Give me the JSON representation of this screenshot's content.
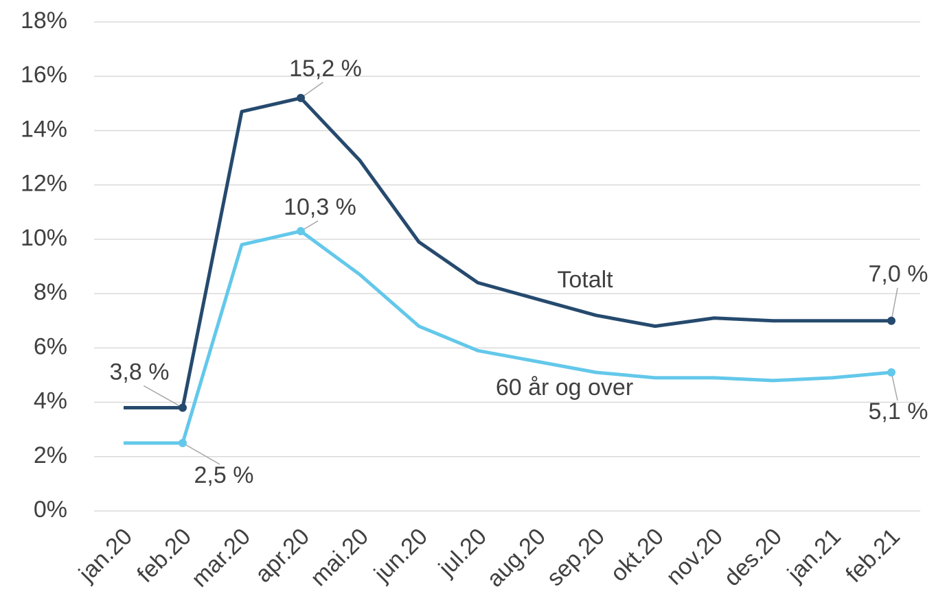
{
  "chart_data": {
    "type": "line",
    "categories": [
      "jan.20",
      "feb.20",
      "mar.20",
      "apr.20",
      "mai.20",
      "jun.20",
      "jul.20",
      "aug.20",
      "sep.20",
      "okt.20",
      "nov.20",
      "des.20",
      "jan.21",
      "feb.21"
    ],
    "series": [
      {
        "name": "Totalt",
        "color": "#264a6e",
        "values": [
          3.8,
          3.8,
          14.7,
          15.2,
          12.9,
          9.9,
          8.4,
          7.8,
          7.2,
          6.8,
          7.1,
          7.0,
          7.0,
          7.0
        ],
        "value_labels": [
          null,
          "3,8 %",
          null,
          "15,2 %",
          null,
          null,
          null,
          null,
          null,
          null,
          null,
          null,
          null,
          "7,0 %"
        ]
      },
      {
        "name": "60 år og over",
        "color": "#63c8ea",
        "values": [
          2.5,
          2.5,
          9.8,
          10.3,
          8.7,
          6.8,
          5.9,
          5.5,
          5.1,
          4.9,
          4.9,
          4.8,
          4.9,
          5.1
        ],
        "value_labels": [
          null,
          "2,5 %",
          null,
          "10,3 %",
          null,
          null,
          null,
          null,
          null,
          null,
          null,
          null,
          null,
          "5,1 %"
        ]
      }
    ],
    "ylim": [
      0,
      18
    ],
    "yticks": [
      {
        "value": 0,
        "label": "0%"
      },
      {
        "value": 2,
        "label": "2%"
      },
      {
        "value": 4,
        "label": "4%"
      },
      {
        "value": 6,
        "label": "6%"
      },
      {
        "value": 8,
        "label": "8%"
      },
      {
        "value": 10,
        "label": "10%"
      },
      {
        "value": 12,
        "label": "12%"
      },
      {
        "value": 14,
        "label": "14%"
      },
      {
        "value": 16,
        "label": "16%"
      },
      {
        "value": 18,
        "label": "18%"
      }
    ],
    "grid": true
  }
}
